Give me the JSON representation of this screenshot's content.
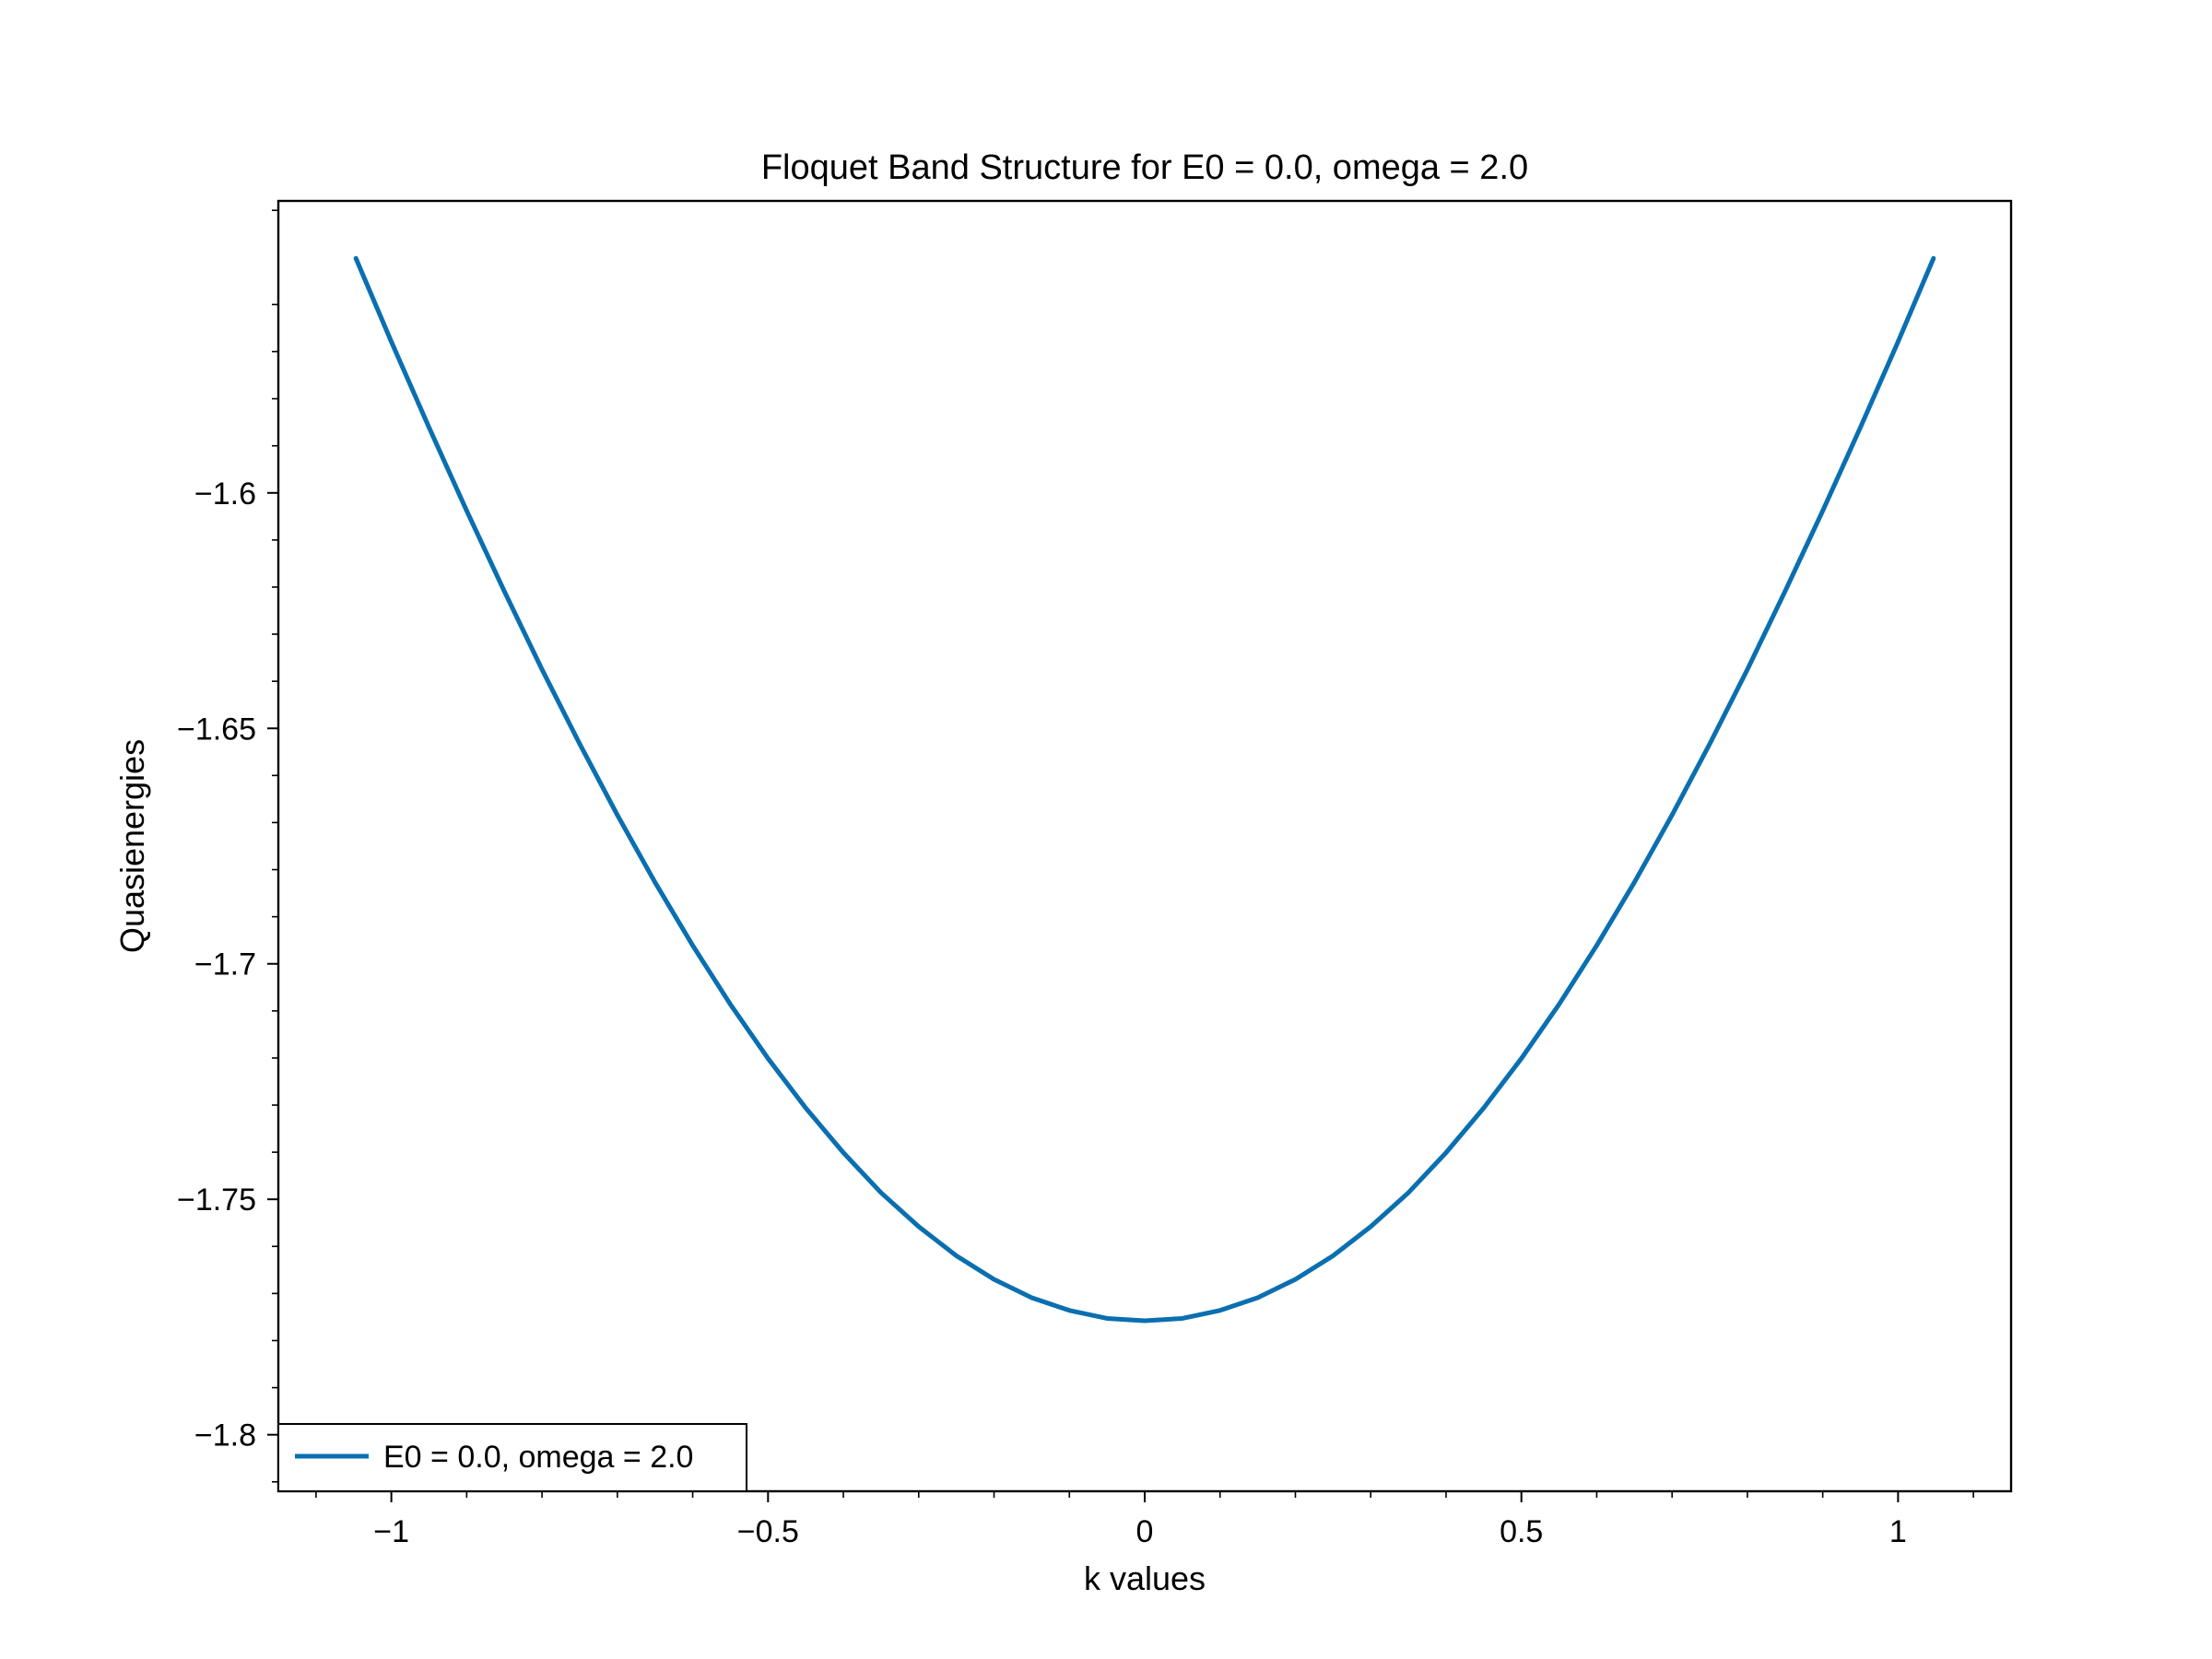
{
  "chart_data": {
    "type": "line",
    "title": "Floquet Band Structure for E0 = 0.0, omega = 2.0",
    "xlabel": "k values",
    "ylabel": "Quasienergies",
    "xlim": [
      -1.15,
      1.15
    ],
    "ylim": [
      -1.812,
      -1.538
    ],
    "grid": false,
    "legend_position": "lower-left",
    "x_ticks": [
      {
        "value": -1,
        "label": "−1"
      },
      {
        "value": -0.5,
        "label": "−0.5"
      },
      {
        "value": 0,
        "label": "0"
      },
      {
        "value": 0.5,
        "label": "0.5"
      },
      {
        "value": 1,
        "label": "1"
      }
    ],
    "y_ticks": [
      {
        "value": -1.6,
        "label": "−1.6"
      },
      {
        "value": -1.65,
        "label": "−1.65"
      },
      {
        "value": -1.7,
        "label": "−1.7"
      },
      {
        "value": -1.75,
        "label": "−1.75"
      },
      {
        "value": -1.8,
        "label": "−1.8"
      }
    ],
    "series": [
      {
        "name": "E0 = 0.0, omega = 2.0",
        "color": "#0a6fb0",
        "x": [
          -1.047,
          -1.0,
          -0.95,
          -0.9,
          -0.85,
          -0.8,
          -0.75,
          -0.7,
          -0.65,
          -0.6,
          -0.55,
          -0.5,
          -0.45,
          -0.4,
          -0.35,
          -0.3,
          -0.25,
          -0.2,
          -0.15,
          -0.1,
          -0.05,
          0.0,
          0.05,
          0.1,
          0.15,
          0.2,
          0.25,
          0.3,
          0.35,
          0.4,
          0.45,
          0.5,
          0.55,
          0.6,
          0.65,
          0.7,
          0.75,
          0.8,
          0.85,
          0.9,
          0.95,
          1.0,
          1.047
        ],
        "y": [
          -1.5502,
          -1.5679,
          -1.5861,
          -1.6038,
          -1.6209,
          -1.6375,
          -1.6533,
          -1.6684,
          -1.6827,
          -1.6961,
          -1.7086,
          -1.7201,
          -1.7306,
          -1.7401,
          -1.7486,
          -1.7558,
          -1.762,
          -1.767,
          -1.7709,
          -1.7736,
          -1.7753,
          -1.7758,
          -1.7753,
          -1.7736,
          -1.7709,
          -1.767,
          -1.762,
          -1.7558,
          -1.7486,
          -1.7401,
          -1.7306,
          -1.7201,
          -1.7086,
          -1.6961,
          -1.6827,
          -1.6684,
          -1.6533,
          -1.6375,
          -1.6209,
          -1.6038,
          -1.5861,
          -1.5679,
          -1.5502
        ]
      }
    ]
  }
}
